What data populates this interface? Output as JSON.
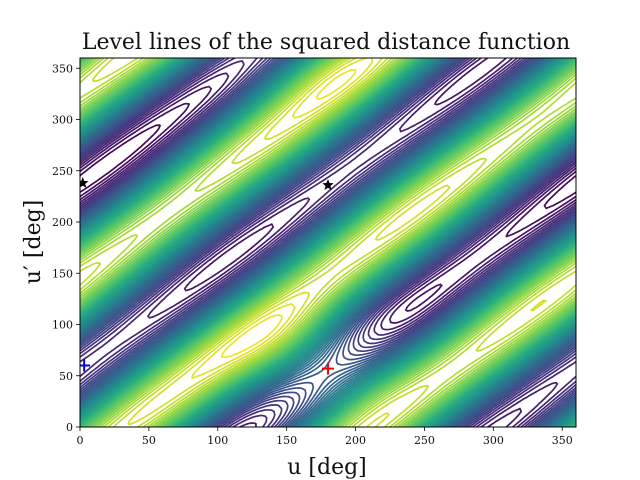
{
  "chart_data": {
    "type": "contour",
    "title": "Level lines of the squared distance function",
    "xlabel": "u [deg]",
    "ylabel": "u′ [deg]",
    "xlim": [
      0,
      360
    ],
    "ylim": [
      0,
      360
    ],
    "xticks": [
      0,
      50,
      100,
      150,
      200,
      250,
      300,
      350
    ],
    "yticks": [
      0,
      50,
      100,
      150,
      200,
      250,
      300,
      350
    ],
    "grid": false,
    "colormap": "viridis",
    "level_count": 44,
    "markers": [
      {
        "symbol": "star",
        "color": "#000000",
        "u": 180,
        "u_prime": 236
      },
      {
        "symbol": "star",
        "color": "#000000",
        "u": 2,
        "u_prime": 238
      },
      {
        "symbol": "plus",
        "color": "#0000ff",
        "u": 3,
        "u_prime": 60
      },
      {
        "symbol": "plus",
        "color": "#ff0000",
        "u": 180,
        "u_prime": 57
      }
    ],
    "accent_colors": {
      "lowest": "#440154",
      "middle": "#21918c",
      "highest": "#fde725"
    }
  }
}
